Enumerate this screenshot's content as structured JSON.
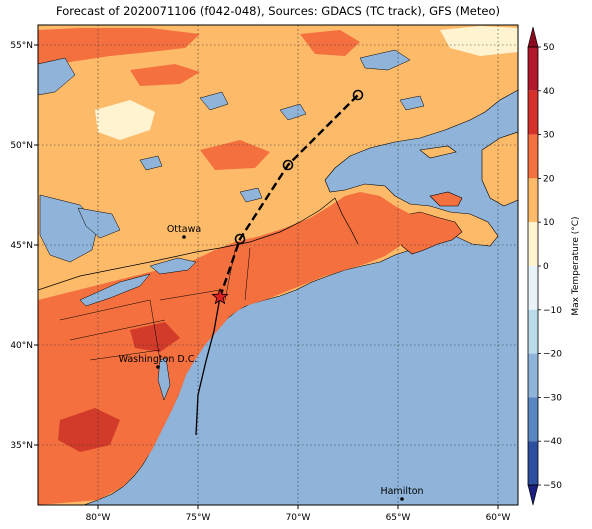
{
  "title": "Forecast of 2020071106 (f042-048), Sources: GDACS (TC track), GFS (Meteo)",
  "colors": {
    "ocean": "#8fb3d9",
    "land_low": "#fdbb6a",
    "land_mid": "#f4703f",
    "land_high": "#d23b2a",
    "land_cool": "#fff3d0",
    "lake": "#8fb3d9",
    "storm_marker": "#e02020"
  },
  "map": {
    "lon_range": [
      -83,
      -59
    ],
    "lat_range": [
      32,
      56
    ],
    "lon_ticks": [
      {
        "value": -80,
        "label": "80°W"
      },
      {
        "value": -75,
        "label": "75°W"
      },
      {
        "value": -70,
        "label": "70°W"
      },
      {
        "value": -65,
        "label": "65°W"
      },
      {
        "value": -60,
        "label": "60°W"
      }
    ],
    "lat_ticks": [
      {
        "value": 35,
        "label": "35°N"
      },
      {
        "value": 40,
        "label": "40°N"
      },
      {
        "value": 45,
        "label": "45°N"
      },
      {
        "value": 50,
        "label": "50°N"
      },
      {
        "value": 55,
        "label": "55°N"
      }
    ],
    "cities": [
      {
        "name": "Ottawa",
        "lon": -75.7,
        "lat": 45.4
      },
      {
        "name": "Washington D.C.",
        "lon": -77.0,
        "lat": 38.9
      },
      {
        "name": "Hamilton",
        "lon": -64.8,
        "lat": 32.3
      }
    ],
    "past_track": [
      {
        "lon": -75.1,
        "lat": 35.5
      },
      {
        "lon": -75.0,
        "lat": 37.5
      },
      {
        "lon": -74.6,
        "lat": 39.2
      },
      {
        "lon": -74.2,
        "lat": 40.7
      },
      {
        "lon": -73.9,
        "lat": 42.4
      }
    ],
    "current_position": {
      "lon": -73.9,
      "lat": 42.4
    },
    "forecast_track": [
      {
        "lon": -73.9,
        "lat": 42.4
      },
      {
        "lon": -72.9,
        "lat": 45.3
      },
      {
        "lon": -70.5,
        "lat": 49.0
      },
      {
        "lon": -67.0,
        "lat": 52.5
      }
    ],
    "forecast_points": [
      {
        "lon": -72.9,
        "lat": 45.3
      },
      {
        "lon": -70.5,
        "lat": 49.0
      },
      {
        "lon": -67.0,
        "lat": 52.5
      }
    ]
  },
  "colorbar": {
    "label": "Max Temperature (°C)",
    "ticks": [
      50,
      40,
      30,
      20,
      10,
      0,
      -10,
      -20,
      -30,
      -40,
      -50
    ],
    "bins": [
      {
        "from": 40,
        "to": 50,
        "color": "#b2182b"
      },
      {
        "from": 30,
        "to": 40,
        "color": "#d6302a"
      },
      {
        "from": 20,
        "to": 30,
        "color": "#f4703f"
      },
      {
        "from": 10,
        "to": 20,
        "color": "#fdbb6a"
      },
      {
        "from": 0,
        "to": 10,
        "color": "#fff3d0"
      },
      {
        "from": -10,
        "to": 0,
        "color": "#e8f4f8"
      },
      {
        "from": -20,
        "to": -10,
        "color": "#b9dbea"
      },
      {
        "from": -30,
        "to": -20,
        "color": "#8fb3d9"
      },
      {
        "from": -40,
        "to": -30,
        "color": "#5a87c1"
      },
      {
        "from": -50,
        "to": -40,
        "color": "#2e4fa0"
      }
    ],
    "top_extend_color": "#8a0a1e",
    "bottom_extend_color": "#1a1f80"
  }
}
